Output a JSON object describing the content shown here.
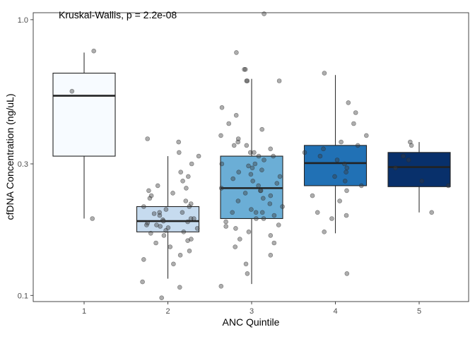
{
  "chart_data": {
    "type": "boxplot",
    "annotation": "Kruskal-Wallis, p = 2.2e-08",
    "xlabel": "ANC Quintile",
    "ylabel": "cfDNA Concentration (ng/uL)",
    "y_scale": "log10",
    "ylim": [
      0.095,
      1.06
    ],
    "y_ticks": [
      {
        "value": 0.1,
        "label": "0.1"
      },
      {
        "value": 0.3,
        "label": "0.3"
      },
      {
        "value": 1.0,
        "label": "1.0"
      }
    ],
    "grid": false,
    "legend": "none",
    "categories": [
      "1",
      "2",
      "3",
      "4",
      "5"
    ],
    "boxes": [
      {
        "category": "1",
        "fill": "#f7fbff",
        "whisker_low": 0.19,
        "q1": 0.32,
        "median": 0.53,
        "q3": 0.64,
        "whisker_high": 0.76
      },
      {
        "category": "2",
        "fill": "#c6dbef",
        "whisker_low": 0.115,
        "q1": 0.17,
        "median": 0.186,
        "q3": 0.21,
        "whisker_high": 0.32
      },
      {
        "category": "3",
        "fill": "#6baed6",
        "whisker_low": 0.11,
        "q1": 0.19,
        "median": 0.245,
        "q3": 0.32,
        "whisker_high": 0.61
      },
      {
        "category": "4",
        "fill": "#2171b5",
        "whisker_low": 0.168,
        "q1": 0.25,
        "median": 0.302,
        "q3": 0.35,
        "whisker_high": 0.63
      },
      {
        "category": "5",
        "fill": "#08306b",
        "whisker_low": 0.2,
        "q1": 0.248,
        "median": 0.292,
        "q3": 0.33,
        "whisker_high": 0.36
      }
    ],
    "points": [
      {
        "category": "1",
        "values": [
          0.77,
          0.55,
          0.19
        ]
      },
      {
        "category": "2",
        "values": [
          0.32,
          0.33,
          0.36,
          0.37,
          0.3,
          0.28,
          0.27,
          0.26,
          0.25,
          0.245,
          0.24,
          0.235,
          0.23,
          0.225,
          0.22,
          0.215,
          0.21,
          0.21,
          0.205,
          0.2,
          0.2,
          0.198,
          0.195,
          0.19,
          0.19,
          0.188,
          0.186,
          0.185,
          0.183,
          0.18,
          0.18,
          0.178,
          0.176,
          0.175,
          0.172,
          0.17,
          0.168,
          0.165,
          0.16,
          0.158,
          0.155,
          0.15,
          0.145,
          0.14,
          0.135,
          0.13,
          0.112,
          0.107,
          0.098
        ]
      },
      {
        "category": "3",
        "values": [
          1.05,
          0.76,
          0.66,
          0.66,
          0.6,
          0.6,
          0.6,
          0.48,
          0.45,
          0.42,
          0.4,
          0.38,
          0.37,
          0.36,
          0.35,
          0.35,
          0.34,
          0.33,
          0.33,
          0.32,
          0.32,
          0.31,
          0.3,
          0.3,
          0.295,
          0.29,
          0.285,
          0.28,
          0.275,
          0.27,
          0.265,
          0.26,
          0.255,
          0.25,
          0.245,
          0.24,
          0.24,
          0.235,
          0.23,
          0.225,
          0.22,
          0.215,
          0.21,
          0.205,
          0.2,
          0.2,
          0.2,
          0.195,
          0.19,
          0.19,
          0.185,
          0.18,
          0.178,
          0.175,
          0.17,
          0.165,
          0.16,
          0.155,
          0.15,
          0.14,
          0.13,
          0.12,
          0.108
        ]
      },
      {
        "category": "4",
        "values": [
          0.64,
          0.5,
          0.46,
          0.42,
          0.38,
          0.36,
          0.35,
          0.34,
          0.33,
          0.32,
          0.31,
          0.3,
          0.29,
          0.28,
          0.27,
          0.26,
          0.25,
          0.24,
          0.23,
          0.22,
          0.2,
          0.195,
          0.19,
          0.17,
          0.12
        ]
      },
      {
        "category": "5",
        "values": [
          0.36,
          0.35,
          0.32,
          0.31,
          0.29,
          0.26,
          0.25,
          0.2
        ]
      }
    ]
  }
}
